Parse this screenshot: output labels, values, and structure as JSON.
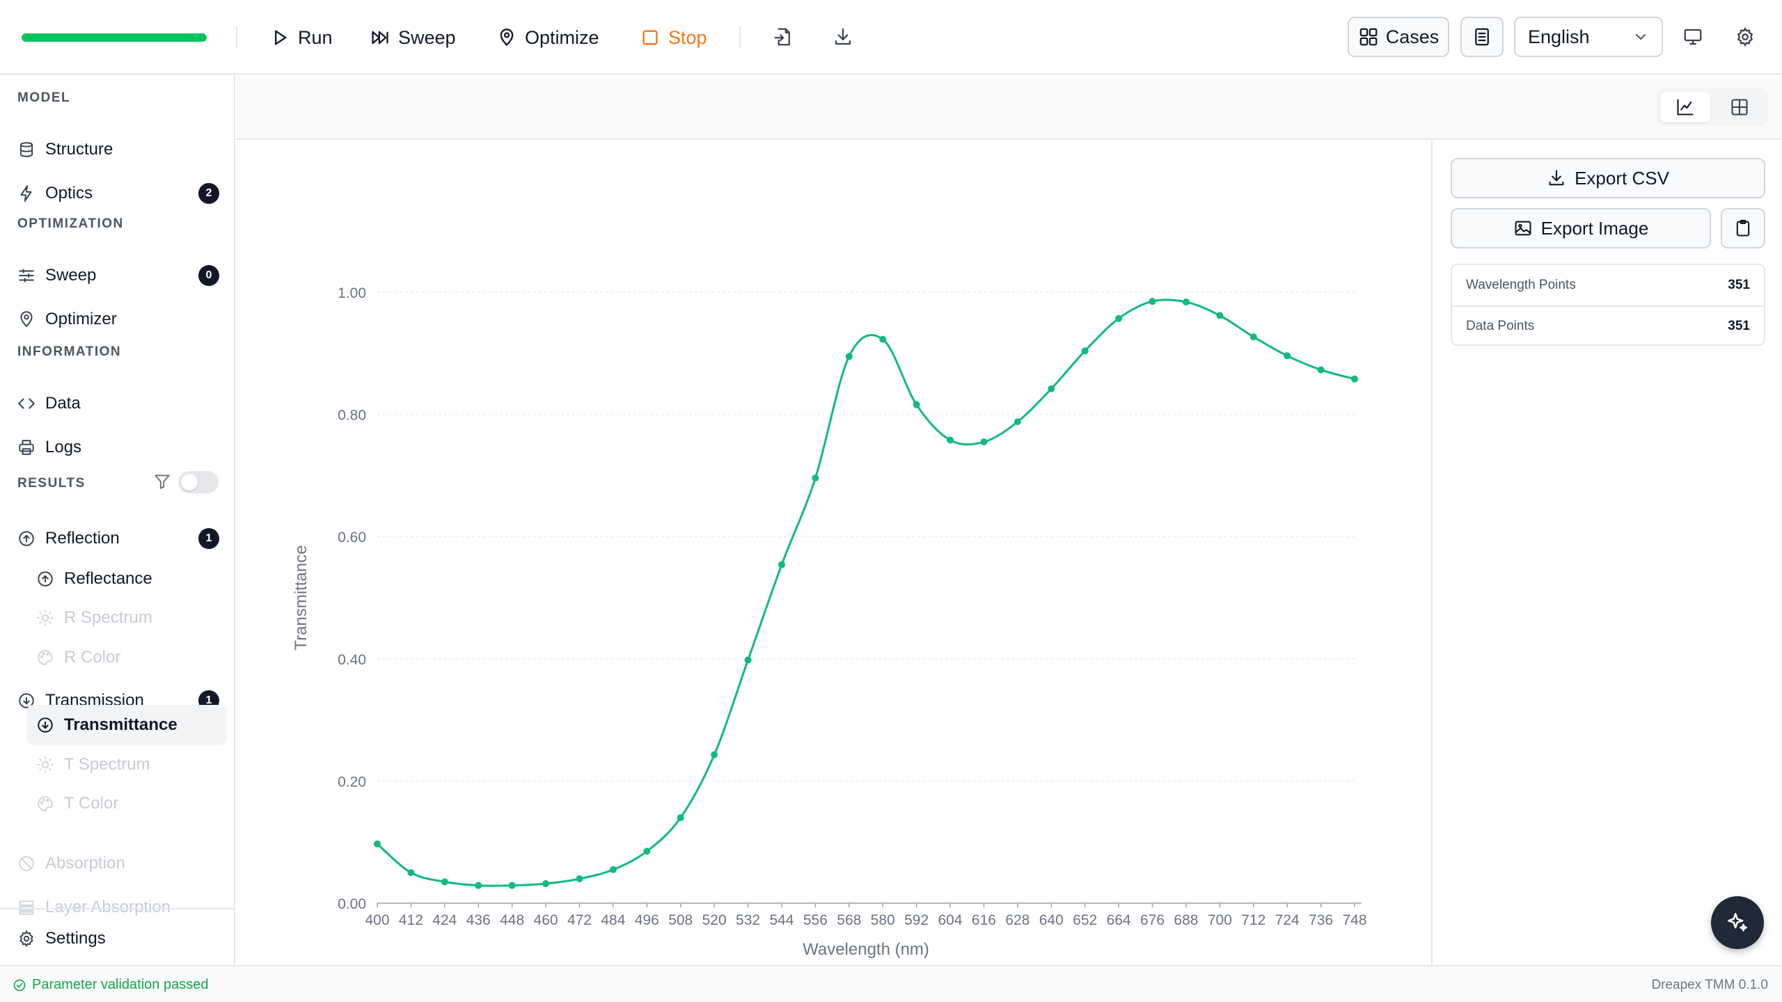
{
  "toolbar": {
    "progress": 1.0,
    "run_label": "Run",
    "sweep_label": "Sweep",
    "optimize_label": "Optimize",
    "stop_label": "Stop",
    "cases_label": "Cases",
    "language": "English"
  },
  "sidebar": {
    "model_label": "MODEL",
    "structure_label": "Structure",
    "optics_label": "Optics",
    "optics_badge": "2",
    "optimization_label": "OPTIMIZATION",
    "sweep_label": "Sweep",
    "sweep_badge": "0",
    "optimizer_label": "Optimizer",
    "information_label": "INFORMATION",
    "data_label": "Data",
    "logs_label": "Logs",
    "results_label": "RESULTS",
    "reflection_label": "Reflection",
    "reflection_badge": "1",
    "reflectance_label": "Reflectance",
    "r_spectrum_label": "R Spectrum",
    "r_color_label": "R Color",
    "transmission_label": "Transmission",
    "transmission_badge": "1",
    "transmittance_label": "Transmittance",
    "t_spectrum_label": "T Spectrum",
    "t_color_label": "T Color",
    "absorption_label": "Absorption",
    "layer_absorption_label": "Layer Absorption",
    "settings_label": "Settings"
  },
  "panel": {
    "export_csv_label": "Export CSV",
    "export_image_label": "Export Image",
    "wavelength_points_label": "Wavelength Points",
    "wavelength_points_value": "351",
    "data_points_label": "Data Points",
    "data_points_value": "351"
  },
  "status": {
    "message": "Parameter validation passed",
    "version": "Dreapex TMM 0.1.0"
  },
  "colors": {
    "accent": "#10b981",
    "progress": "#00c45f",
    "stop": "#f97316",
    "ok": "#16a34a"
  },
  "chart_data": {
    "type": "line",
    "xlabel": "Wavelength (nm)",
    "ylabel": "Transmittance",
    "xlim": [
      400,
      750
    ],
    "ylim": [
      0,
      1
    ],
    "y_ticks": [
      "0.00",
      "0.20",
      "0.40",
      "0.60",
      "0.80",
      "1.00"
    ],
    "x_ticks": [
      400,
      412,
      424,
      436,
      448,
      460,
      472,
      484,
      496,
      508,
      520,
      532,
      544,
      556,
      568,
      580,
      592,
      604,
      616,
      628,
      640,
      652,
      664,
      676,
      688,
      700,
      712,
      724,
      736,
      748
    ],
    "series": [
      {
        "x": [
          400,
          412,
          424,
          436,
          448,
          460,
          472,
          484,
          496,
          508,
          520,
          532,
          544,
          556,
          568,
          580,
          592,
          604,
          616,
          628,
          640,
          652,
          664,
          676,
          688,
          700,
          712,
          724,
          736,
          748
        ],
        "values": [
          0.097,
          0.05,
          0.035,
          0.029,
          0.029,
          0.032,
          0.04,
          0.055,
          0.085,
          0.14,
          0.243,
          0.398,
          0.554,
          0.696,
          0.895,
          0.923,
          0.816,
          0.758,
          0.755,
          0.788,
          0.842,
          0.904,
          0.957,
          0.985,
          0.984,
          0.962,
          0.927,
          0.896,
          0.873,
          0.858
        ]
      }
    ]
  }
}
